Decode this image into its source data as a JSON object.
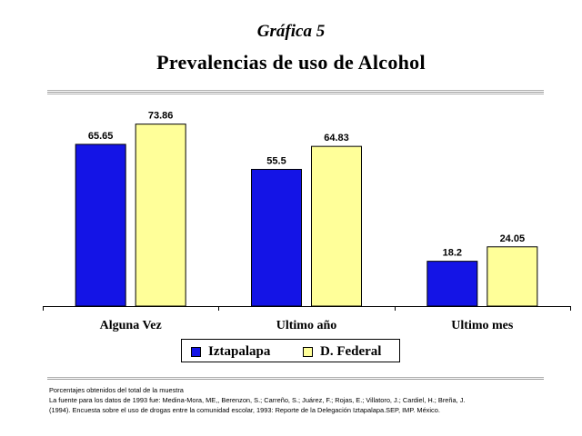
{
  "header": {
    "overline": "Gráfica 5",
    "title": "Prevalencias de uso de Alcohol"
  },
  "chart_data": {
    "type": "bar",
    "categories": [
      "Alguna Vez",
      "Ultimo año",
      "Ultimo mes"
    ],
    "series": [
      {
        "name": "Iztapalapa",
        "values": [
          65.65,
          55.5,
          18.2
        ],
        "labels": [
          "65.65",
          "55.5",
          "18.2"
        ],
        "color": "#1414E6"
      },
      {
        "name": "D. Federal",
        "values": [
          73.86,
          64.83,
          24.05
        ],
        "labels": [
          "73.86",
          "64.83",
          "24.05"
        ],
        "color": "#FFFF99"
      }
    ],
    "ylim": [
      0,
      80
    ],
    "grid": false,
    "legend_position": "bottom-center"
  },
  "notes": {
    "line1": "Porcentajes obtenidos del total de la muestra",
    "line2": "La fuente para los datos de 1993 fue: Medina-Mora, ME,, Berenzon, S.; Carreño, S.; Juárez, F.; Rojas, E.; Villatoro, J.; Cardiel, H.; Breña, J.",
    "line3": "(1994). Encuesta sobre el uso de drogas entre la comunidad escolar, 1993: Reporte de la Delegación Iztapalapa.SEP, IMP. México."
  }
}
